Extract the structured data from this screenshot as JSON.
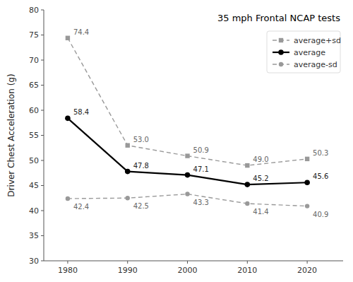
{
  "chart_data": {
    "type": "line",
    "title": "35 mph Frontal NCAP tests",
    "y_label": "Driver Chest Acceleration (g)",
    "x": [
      1980,
      1990,
      2000,
      2010,
      2020
    ],
    "series": [
      {
        "name": "average+sd",
        "color": "#999999",
        "marker": "square",
        "line_style": "dashed",
        "values": [
          74.4,
          53.0,
          50.9,
          49.0,
          50.3
        ],
        "value_labels": [
          "74.4",
          "53.0",
          "50.9",
          "49.0",
          "50.3"
        ]
      },
      {
        "name": "average",
        "color": "#000000",
        "marker": "circle",
        "line_style": "solid",
        "values": [
          58.4,
          47.8,
          47.1,
          45.2,
          45.6
        ]
      },
      {
        "name": "average-sd",
        "color": "#999999",
        "marker": "circle",
        "line_style": "dashed",
        "values": [
          42.4,
          42.5,
          43.3,
          41.4,
          40.9
        ]
      }
    ],
    "xlim": [
      1976,
      2026
    ],
    "ylim": [
      30,
      80
    ],
    "xticks": [
      1980,
      1990,
      2000,
      2010,
      2020
    ],
    "yticks": [
      30,
      35,
      40,
      45,
      50,
      55,
      60,
      65,
      70,
      75,
      80
    ],
    "grid": false,
    "legend": "upper right",
    "data_labels": true
  }
}
